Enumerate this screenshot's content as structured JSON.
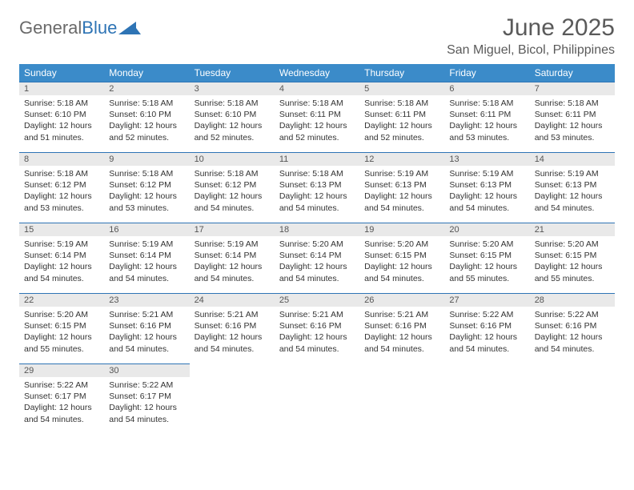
{
  "logo": {
    "text_gray": "General",
    "text_blue": "Blue"
  },
  "title": "June 2025",
  "location": "San Miguel, Bicol, Philippines",
  "colors": {
    "header_bg": "#3b8bc9",
    "header_text": "#ffffff",
    "daynum_bg": "#e9e9e9",
    "daynum_border": "#2e74b5",
    "body_text": "#333333",
    "title_text": "#5a5a5a"
  },
  "type": "calendar-table",
  "day_headers": [
    "Sunday",
    "Monday",
    "Tuesday",
    "Wednesday",
    "Thursday",
    "Friday",
    "Saturday"
  ],
  "weeks": [
    [
      {
        "n": "1",
        "sr": "Sunrise: 5:18 AM",
        "ss": "Sunset: 6:10 PM",
        "dl": "Daylight: 12 hours and 51 minutes."
      },
      {
        "n": "2",
        "sr": "Sunrise: 5:18 AM",
        "ss": "Sunset: 6:10 PM",
        "dl": "Daylight: 12 hours and 52 minutes."
      },
      {
        "n": "3",
        "sr": "Sunrise: 5:18 AM",
        "ss": "Sunset: 6:10 PM",
        "dl": "Daylight: 12 hours and 52 minutes."
      },
      {
        "n": "4",
        "sr": "Sunrise: 5:18 AM",
        "ss": "Sunset: 6:11 PM",
        "dl": "Daylight: 12 hours and 52 minutes."
      },
      {
        "n": "5",
        "sr": "Sunrise: 5:18 AM",
        "ss": "Sunset: 6:11 PM",
        "dl": "Daylight: 12 hours and 52 minutes."
      },
      {
        "n": "6",
        "sr": "Sunrise: 5:18 AM",
        "ss": "Sunset: 6:11 PM",
        "dl": "Daylight: 12 hours and 53 minutes."
      },
      {
        "n": "7",
        "sr": "Sunrise: 5:18 AM",
        "ss": "Sunset: 6:11 PM",
        "dl": "Daylight: 12 hours and 53 minutes."
      }
    ],
    [
      {
        "n": "8",
        "sr": "Sunrise: 5:18 AM",
        "ss": "Sunset: 6:12 PM",
        "dl": "Daylight: 12 hours and 53 minutes."
      },
      {
        "n": "9",
        "sr": "Sunrise: 5:18 AM",
        "ss": "Sunset: 6:12 PM",
        "dl": "Daylight: 12 hours and 53 minutes."
      },
      {
        "n": "10",
        "sr": "Sunrise: 5:18 AM",
        "ss": "Sunset: 6:12 PM",
        "dl": "Daylight: 12 hours and 54 minutes."
      },
      {
        "n": "11",
        "sr": "Sunrise: 5:18 AM",
        "ss": "Sunset: 6:13 PM",
        "dl": "Daylight: 12 hours and 54 minutes."
      },
      {
        "n": "12",
        "sr": "Sunrise: 5:19 AM",
        "ss": "Sunset: 6:13 PM",
        "dl": "Daylight: 12 hours and 54 minutes."
      },
      {
        "n": "13",
        "sr": "Sunrise: 5:19 AM",
        "ss": "Sunset: 6:13 PM",
        "dl": "Daylight: 12 hours and 54 minutes."
      },
      {
        "n": "14",
        "sr": "Sunrise: 5:19 AM",
        "ss": "Sunset: 6:13 PM",
        "dl": "Daylight: 12 hours and 54 minutes."
      }
    ],
    [
      {
        "n": "15",
        "sr": "Sunrise: 5:19 AM",
        "ss": "Sunset: 6:14 PM",
        "dl": "Daylight: 12 hours and 54 minutes."
      },
      {
        "n": "16",
        "sr": "Sunrise: 5:19 AM",
        "ss": "Sunset: 6:14 PM",
        "dl": "Daylight: 12 hours and 54 minutes."
      },
      {
        "n": "17",
        "sr": "Sunrise: 5:19 AM",
        "ss": "Sunset: 6:14 PM",
        "dl": "Daylight: 12 hours and 54 minutes."
      },
      {
        "n": "18",
        "sr": "Sunrise: 5:20 AM",
        "ss": "Sunset: 6:14 PM",
        "dl": "Daylight: 12 hours and 54 minutes."
      },
      {
        "n": "19",
        "sr": "Sunrise: 5:20 AM",
        "ss": "Sunset: 6:15 PM",
        "dl": "Daylight: 12 hours and 54 minutes."
      },
      {
        "n": "20",
        "sr": "Sunrise: 5:20 AM",
        "ss": "Sunset: 6:15 PM",
        "dl": "Daylight: 12 hours and 55 minutes."
      },
      {
        "n": "21",
        "sr": "Sunrise: 5:20 AM",
        "ss": "Sunset: 6:15 PM",
        "dl": "Daylight: 12 hours and 55 minutes."
      }
    ],
    [
      {
        "n": "22",
        "sr": "Sunrise: 5:20 AM",
        "ss": "Sunset: 6:15 PM",
        "dl": "Daylight: 12 hours and 55 minutes."
      },
      {
        "n": "23",
        "sr": "Sunrise: 5:21 AM",
        "ss": "Sunset: 6:16 PM",
        "dl": "Daylight: 12 hours and 54 minutes."
      },
      {
        "n": "24",
        "sr": "Sunrise: 5:21 AM",
        "ss": "Sunset: 6:16 PM",
        "dl": "Daylight: 12 hours and 54 minutes."
      },
      {
        "n": "25",
        "sr": "Sunrise: 5:21 AM",
        "ss": "Sunset: 6:16 PM",
        "dl": "Daylight: 12 hours and 54 minutes."
      },
      {
        "n": "26",
        "sr": "Sunrise: 5:21 AM",
        "ss": "Sunset: 6:16 PM",
        "dl": "Daylight: 12 hours and 54 minutes."
      },
      {
        "n": "27",
        "sr": "Sunrise: 5:22 AM",
        "ss": "Sunset: 6:16 PM",
        "dl": "Daylight: 12 hours and 54 minutes."
      },
      {
        "n": "28",
        "sr": "Sunrise: 5:22 AM",
        "ss": "Sunset: 6:16 PM",
        "dl": "Daylight: 12 hours and 54 minutes."
      }
    ],
    [
      {
        "n": "29",
        "sr": "Sunrise: 5:22 AM",
        "ss": "Sunset: 6:17 PM",
        "dl": "Daylight: 12 hours and 54 minutes."
      },
      {
        "n": "30",
        "sr": "Sunrise: 5:22 AM",
        "ss": "Sunset: 6:17 PM",
        "dl": "Daylight: 12 hours and 54 minutes."
      },
      null,
      null,
      null,
      null,
      null
    ]
  ]
}
